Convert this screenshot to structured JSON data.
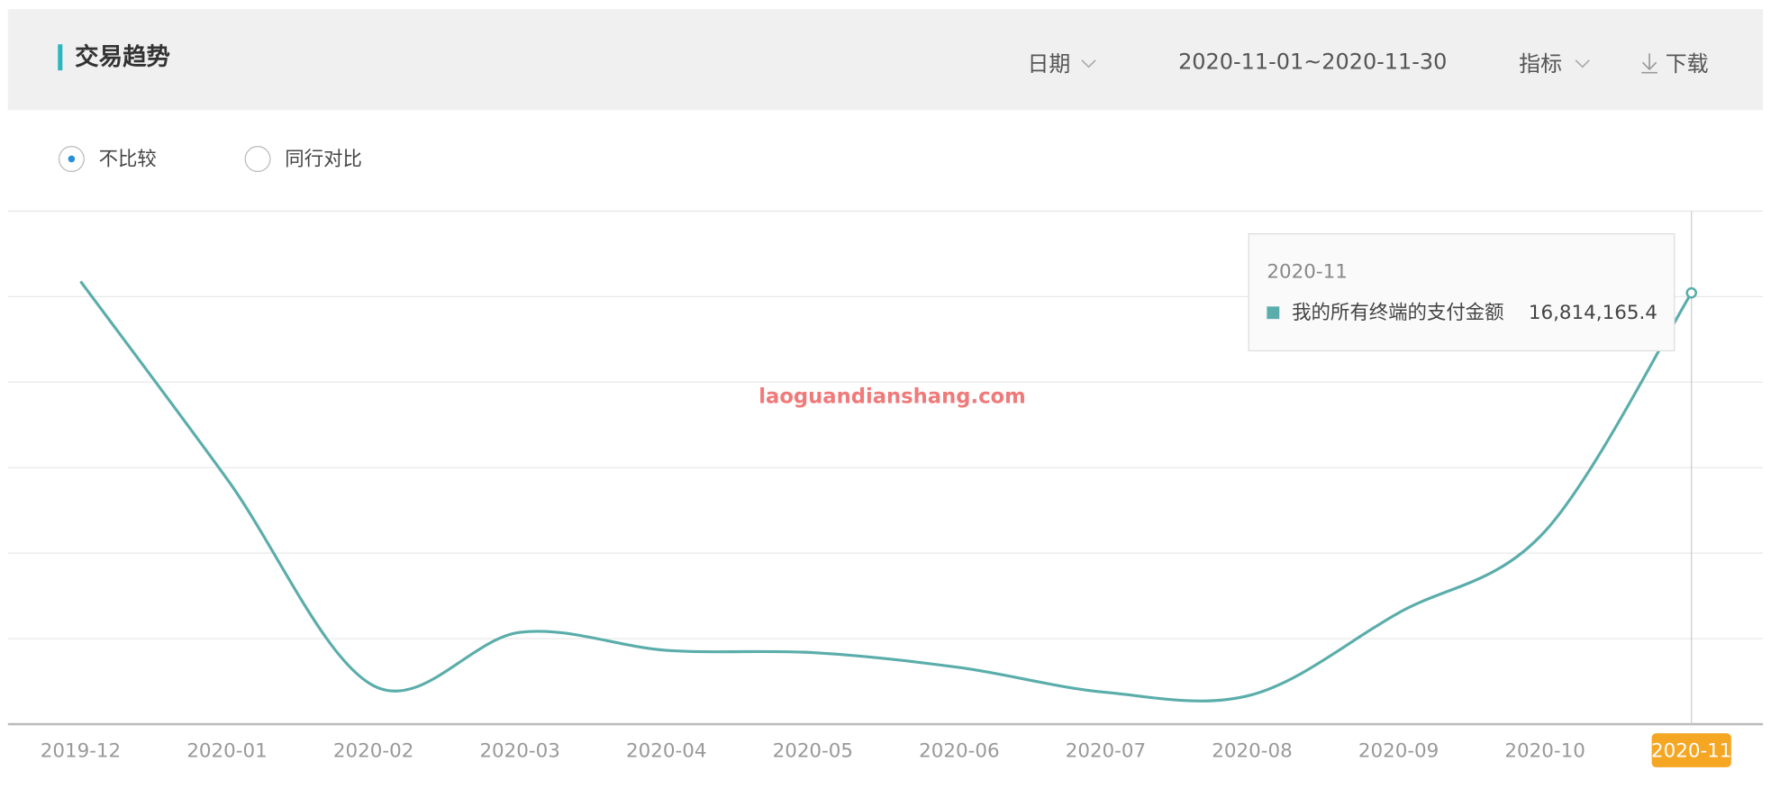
{
  "header": {
    "title": "交易趋势",
    "date_label": "日期",
    "date_range": "2020-11-01~2020-11-30",
    "metric_label": "指标",
    "download_label": "下载"
  },
  "compare_options": [
    "不比较",
    "同行对比"
  ],
  "watermark": "laoguandianshang.com",
  "chart_data": {
    "type": "line",
    "categories": [
      "2019-12",
      "2020-01",
      "2020-02",
      "2020-03",
      "2020-04",
      "2020-05",
      "2020-06",
      "2020-07",
      "2020-08",
      "2020-09",
      "2020-10",
      "2020-11"
    ],
    "series": [
      {
        "name": "我的所有终端的支付金额",
        "color": "#5aadaa",
        "values": [
          17260000,
          9560000,
          1500000,
          3580000,
          2880000,
          2790000,
          2210000,
          1240000,
          1150000,
          4340000,
          7520000,
          16814165.4
        ],
        "value_labels": [
          null,
          null,
          null,
          null,
          null,
          null,
          null,
          null,
          null,
          null,
          null,
          "16,814,165.4"
        ]
      }
    ],
    "ylim": [
      0,
      20000000
    ],
    "highlight_index": 11,
    "grid": true
  }
}
